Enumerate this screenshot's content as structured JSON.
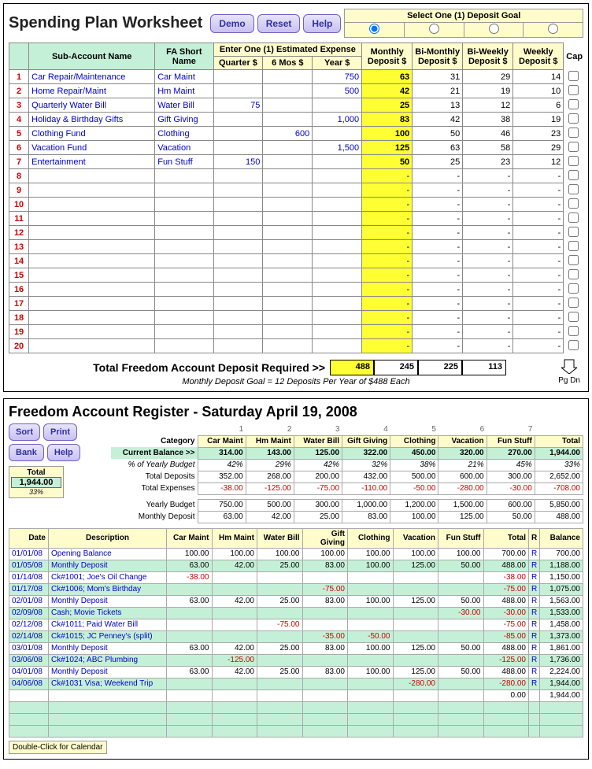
{
  "worksheet": {
    "title": "Spending Plan Worksheet",
    "buttons": {
      "demo": "Demo",
      "reset": "Reset",
      "help": "Help"
    },
    "goal_header": "Select One (1) Deposit Goal",
    "headers": {
      "sub": "Sub-Account Name",
      "fa": "FA Short Name",
      "est": "Enter One (1) Estimated Expense",
      "q": "Quarter $",
      "m6": "6 Mos $",
      "yr": "Year $",
      "mon": "Monthly Deposit $",
      "bim": "Bi-Monthly Deposit $",
      "biw": "Bi-Weekly Deposit $",
      "wk": "Weekly Deposit $",
      "cap": "Cap"
    },
    "rows": [
      {
        "n": 1,
        "name": "Car Repair/Maintenance",
        "fa": "Car Maint",
        "q": "",
        "m6": "",
        "yr": "750",
        "mon": "63",
        "bim": "31",
        "biw": "29",
        "wk": "14"
      },
      {
        "n": 2,
        "name": "Home Repair/Maint",
        "fa": "Hm Maint",
        "q": "",
        "m6": "",
        "yr": "500",
        "mon": "42",
        "bim": "21",
        "biw": "19",
        "wk": "10"
      },
      {
        "n": 3,
        "name": "Quarterly Water Bill",
        "fa": "Water Bill",
        "q": "75",
        "m6": "",
        "yr": "",
        "mon": "25",
        "bim": "13",
        "biw": "12",
        "wk": "6"
      },
      {
        "n": 4,
        "name": "Holiday & Birthday Gifts",
        "fa": "Gift Giving",
        "q": "",
        "m6": "",
        "yr": "1,000",
        "mon": "83",
        "bim": "42",
        "biw": "38",
        "wk": "19"
      },
      {
        "n": 5,
        "name": "Clothing Fund",
        "fa": "Clothing",
        "q": "",
        "m6": "600",
        "yr": "",
        "mon": "100",
        "bim": "50",
        "biw": "46",
        "wk": "23"
      },
      {
        "n": 6,
        "name": "Vacation Fund",
        "fa": "Vacation",
        "q": "",
        "m6": "",
        "yr": "1,500",
        "mon": "125",
        "bim": "63",
        "biw": "58",
        "wk": "29"
      },
      {
        "n": 7,
        "name": "Entertainment",
        "fa": "Fun Stuff",
        "q": "150",
        "m6": "",
        "yr": "",
        "mon": "50",
        "bim": "25",
        "biw": "23",
        "wk": "12"
      }
    ],
    "empty_rows": [
      8,
      9,
      10,
      11,
      12,
      13,
      14,
      15,
      16,
      17,
      18,
      19,
      20
    ],
    "totals": {
      "label": "Total Freedom Account Deposit Required  >>",
      "mon": "488",
      "bim": "245",
      "biw": "225",
      "wk": "113"
    },
    "note": "Monthly Deposit Goal = 12 Deposits Per Year of $488 Each",
    "pgdn": "Pg Dn"
  },
  "register": {
    "title": "Freedom Account Register - Saturday April 19, 2008",
    "buttons": {
      "sort": "Sort",
      "print": "Print",
      "bank": "Bank",
      "help": "Help"
    },
    "totbox": {
      "lbl": "Total",
      "val": "1,944.00",
      "pct": "33%"
    },
    "colnums": [
      "1",
      "2",
      "3",
      "4",
      "5",
      "6",
      "7"
    ],
    "cats": [
      "Car Maint",
      "Hm Maint",
      "Water Bill",
      "Gift Giving",
      "Clothing",
      "Vacation",
      "Fun Stuff",
      "Total"
    ],
    "sidelabels": {
      "cat": "Category",
      "bal": "Current Balance >>",
      "pct": "% of Yearly Budget",
      "dep": "Total Deposits",
      "exp": "Total Expenses",
      "yb": "Yearly Budget",
      "md": "Monthly Deposit"
    },
    "summary": {
      "bal": [
        "314.00",
        "143.00",
        "125.00",
        "322.00",
        "450.00",
        "320.00",
        "270.00",
        "1,944.00"
      ],
      "pct": [
        "42%",
        "29%",
        "42%",
        "32%",
        "38%",
        "21%",
        "45%",
        "33%"
      ],
      "dep": [
        "352.00",
        "268.00",
        "200.00",
        "432.00",
        "500.00",
        "600.00",
        "300.00",
        "2,652.00"
      ],
      "exp": [
        "-38.00",
        "-125.00",
        "-75.00",
        "-110.00",
        "-50.00",
        "-280.00",
        "-30.00",
        "-708.00"
      ],
      "yb": [
        "750.00",
        "500.00",
        "300.00",
        "1,000.00",
        "1,200.00",
        "1,500.00",
        "600.00",
        "5,850.00"
      ],
      "md": [
        "63.00",
        "42.00",
        "25.00",
        "83.00",
        "100.00",
        "125.00",
        "50.00",
        "488.00"
      ]
    },
    "headers": {
      "date": "Date",
      "desc": "Description",
      "r": "R",
      "balance": "Balance"
    },
    "txns": [
      {
        "g": 0,
        "date": "01/01/08",
        "desc": "Opening Balance",
        "v": [
          "100.00",
          "100.00",
          "100.00",
          "100.00",
          "100.00",
          "100.00",
          "100.00"
        ],
        "tot": "700.00",
        "r": "R",
        "bal": "700.00"
      },
      {
        "g": 1,
        "date": "01/05/08",
        "desc": "Monthly Deposit",
        "v": [
          "63.00",
          "42.00",
          "25.00",
          "83.00",
          "100.00",
          "125.00",
          "50.00"
        ],
        "tot": "488.00",
        "r": "R",
        "bal": "1,188.00"
      },
      {
        "g": 0,
        "date": "01/14/08",
        "desc": "Ck#1001; Joe's Oil Change",
        "v": [
          "-38.00",
          "",
          "",
          "",
          "",
          "",
          ""
        ],
        "tot": "-38.00",
        "r": "R",
        "bal": "1,150.00"
      },
      {
        "g": 1,
        "date": "01/17/08",
        "desc": "Ck#1006; Mom's Birthday",
        "v": [
          "",
          "",
          "",
          "-75.00",
          "",
          "",
          ""
        ],
        "tot": "-75.00",
        "r": "R",
        "bal": "1,075.00"
      },
      {
        "g": 0,
        "date": "02/01/08",
        "desc": "Monthly Deposit",
        "v": [
          "63.00",
          "42.00",
          "25.00",
          "83.00",
          "100.00",
          "125.00",
          "50.00"
        ],
        "tot": "488.00",
        "r": "R",
        "bal": "1,563.00"
      },
      {
        "g": 1,
        "date": "02/09/08",
        "desc": "Cash; Movie Tickets",
        "v": [
          "",
          "",
          "",
          "",
          "",
          "",
          "-30.00"
        ],
        "tot": "-30.00",
        "r": "R",
        "bal": "1,533.00"
      },
      {
        "g": 0,
        "date": "02/12/08",
        "desc": "Ck#1011; Paid Water Bill",
        "v": [
          "",
          "",
          "-75.00",
          "",
          "",
          "",
          ""
        ],
        "tot": "-75.00",
        "r": "R",
        "bal": "1,458.00"
      },
      {
        "g": 1,
        "date": "02/14/08",
        "desc": "Ck#1015; JC Penney's (split)",
        "v": [
          "",
          "",
          "",
          "-35.00",
          "-50.00",
          "",
          ""
        ],
        "tot": "-85.00",
        "r": "R",
        "bal": "1,373.00"
      },
      {
        "g": 0,
        "date": "03/01/08",
        "desc": "Monthly Deposit",
        "v": [
          "63.00",
          "42.00",
          "25.00",
          "83.00",
          "100.00",
          "125.00",
          "50.00"
        ],
        "tot": "488.00",
        "r": "R",
        "bal": "1,861.00"
      },
      {
        "g": 1,
        "date": "03/06/08",
        "desc": "Ck#1024; ABC Plumbing",
        "v": [
          "",
          "-125.00",
          "",
          "",
          "",
          "",
          ""
        ],
        "tot": "-125.00",
        "r": "R",
        "bal": "1,736.00"
      },
      {
        "g": 0,
        "date": "04/01/08",
        "desc": "Monthly Deposit",
        "v": [
          "63.00",
          "42.00",
          "25.00",
          "83.00",
          "100.00",
          "125.00",
          "50.00"
        ],
        "tot": "488.00",
        "r": "R",
        "bal": "2,224.00"
      },
      {
        "g": 1,
        "date": "04/06/08",
        "desc": "Ck#1031 Visa; Weekend Trip",
        "v": [
          "",
          "",
          "",
          "",
          "",
          "-280.00",
          ""
        ],
        "tot": "-280.00",
        "r": "R",
        "bal": "1,944.00"
      }
    ],
    "footer_bal": "1,944.00",
    "footer_zero": "0.00",
    "tooltip": "Double-Click for Calendar"
  }
}
